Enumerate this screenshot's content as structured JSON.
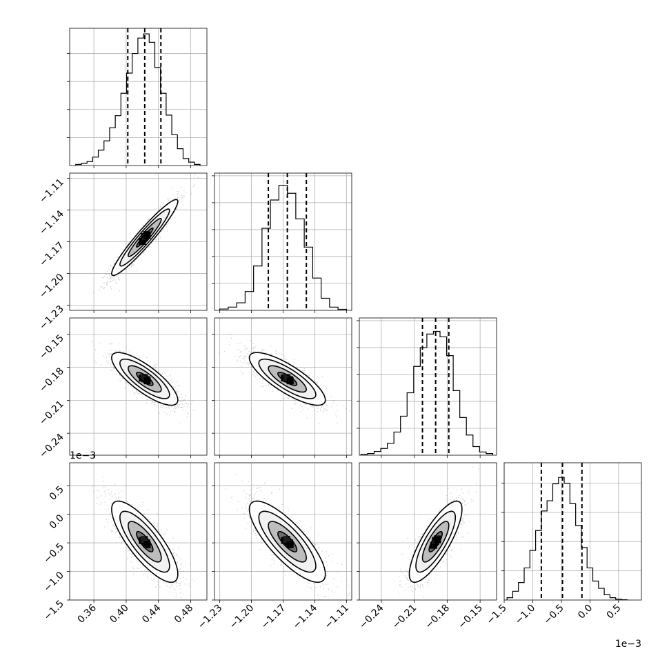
{
  "chart_data": {
    "type": "corner",
    "grid": true,
    "parameters": [
      {
        "range": [
          0.33,
          0.5
        ],
        "ticks": [
          0.36,
          0.4,
          0.44,
          0.48
        ],
        "tick_labels": [
          "0.36",
          "0.40",
          "0.44",
          "0.48"
        ],
        "quantiles": [
          0.402,
          0.423,
          0.443
        ],
        "hist_centers": [
          0.341,
          0.348,
          0.355,
          0.362,
          0.369,
          0.376,
          0.383,
          0.39,
          0.397,
          0.404,
          0.411,
          0.418,
          0.425,
          0.432,
          0.439,
          0.446,
          0.453,
          0.46,
          0.467,
          0.474,
          0.481,
          0.488
        ],
        "hist_counts": [
          4,
          8,
          14,
          30,
          55,
          88,
          135,
          178,
          258,
          330,
          400,
          455,
          470,
          440,
          350,
          258,
          180,
          110,
          60,
          25,
          12,
          4
        ],
        "hist_max": 490,
        "exponent_label": ""
      },
      {
        "range": [
          -1.235,
          -1.105
        ],
        "ticks": [
          -1.23,
          -1.2,
          -1.17,
          -1.14,
          -1.11
        ],
        "tick_labels": [
          "−1.23",
          "−1.20",
          "−1.17",
          "−1.14",
          "−1.11"
        ],
        "quantiles": [
          -1.184,
          -1.166,
          -1.148
        ],
        "hist_centers": [
          -1.226,
          -1.218,
          -1.21,
          -1.202,
          -1.194,
          -1.186,
          -1.178,
          -1.17,
          -1.162,
          -1.154,
          -1.146,
          -1.138,
          -1.13,
          -1.122,
          -1.114
        ],
        "hist_counts": [
          5,
          12,
          28,
          70,
          165,
          305,
          410,
          465,
          435,
          340,
          235,
          120,
          45,
          12,
          4
        ],
        "hist_max": 510,
        "exponent_label": ""
      },
      {
        "range": [
          -0.26,
          -0.135
        ],
        "ticks": [
          -0.24,
          -0.21,
          -0.18,
          -0.15
        ],
        "tick_labels": [
          "−0.24",
          "−0.21",
          "−0.18",
          "−0.15"
        ],
        "quantiles": [
          -0.2025,
          -0.1905,
          -0.1785
        ],
        "hist_centers": [
          -0.2555,
          -0.2495,
          -0.2435,
          -0.2375,
          -0.2315,
          -0.2255,
          -0.2195,
          -0.2135,
          -0.2075,
          -0.2015,
          -0.1955,
          -0.1895,
          -0.1835,
          -0.1775,
          -0.1715,
          -0.1655,
          -0.1595,
          -0.1535,
          -0.1475,
          -0.1415
        ],
        "hist_counts": [
          3,
          6,
          14,
          25,
          44,
          86,
          145,
          232,
          330,
          400,
          450,
          460,
          440,
          370,
          240,
          140,
          75,
          32,
          12,
          6
        ],
        "hist_max": 510,
        "exponent_label": ""
      },
      {
        "range": [
          -1.5,
          0.9
        ],
        "ticks": [
          -1.5,
          -1.0,
          -0.5,
          0.0,
          0.5
        ],
        "tick_labels": [
          "−1.5",
          "−1.0",
          "−0.5",
          "0.0",
          "0.5"
        ],
        "quantiles": [
          -0.85,
          -0.48,
          -0.14
        ],
        "hist_centers": [
          -1.4,
          -1.3,
          -1.2,
          -1.1,
          -1.0,
          -0.9,
          -0.8,
          -0.7,
          -0.6,
          -0.5,
          -0.4,
          -0.3,
          -0.2,
          -0.1,
          0.0,
          0.1,
          0.2,
          0.3,
          0.4,
          0.5,
          0.6
        ],
        "hist_counts": [
          8,
          30,
          60,
          110,
          170,
          238,
          305,
          340,
          398,
          420,
          400,
          330,
          255,
          180,
          110,
          65,
          40,
          18,
          8,
          3,
          1
        ],
        "hist_max": 470,
        "exponent_label": "1e−3"
      }
    ],
    "correlations": [
      {
        "i": 1,
        "j": 0,
        "rho": 0.95
      },
      {
        "i": 2,
        "j": 0,
        "rho": -0.8
      },
      {
        "i": 2,
        "j": 1,
        "rho": -0.8
      },
      {
        "i": 3,
        "j": 0,
        "rho": -0.8
      },
      {
        "i": 3,
        "j": 1,
        "rho": -0.8
      },
      {
        "i": 3,
        "j": 2,
        "rho": 0.8
      }
    ],
    "contour_levels_sigma": [
      0.5,
      1.0,
      1.5,
      2.0
    ]
  }
}
